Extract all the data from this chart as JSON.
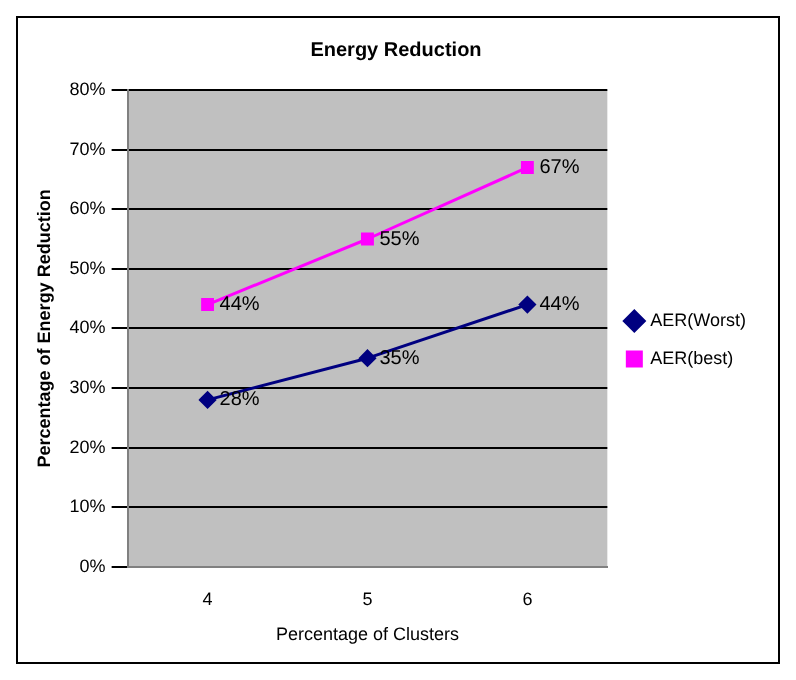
{
  "chart_data": {
    "type": "line",
    "title": "Energy Reduction",
    "xlabel": "Percentage of Clusters",
    "ylabel": "Percentage of Energy Reduction",
    "categories": [
      "4",
      "5",
      "6"
    ],
    "series": [
      {
        "name": "AER(Worst)",
        "color": "#000080",
        "marker": "diamond",
        "values": [
          28,
          35,
          44
        ],
        "value_labels": [
          "28%",
          "35%",
          "44%"
        ]
      },
      {
        "name": "AER(best)",
        "color": "#ff00ff",
        "marker": "square",
        "values": [
          44,
          55,
          67
        ],
        "value_labels": [
          "44%",
          "55%",
          "67%"
        ]
      }
    ],
    "ylim": [
      0,
      80
    ],
    "yticks": [
      {
        "value": 0,
        "label": "0%"
      },
      {
        "value": 10,
        "label": "10%"
      },
      {
        "value": 20,
        "label": "20%"
      },
      {
        "value": 30,
        "label": "30%"
      },
      {
        "value": 40,
        "label": "40%"
      },
      {
        "value": 50,
        "label": "50%"
      },
      {
        "value": 60,
        "label": "60%"
      },
      {
        "value": 70,
        "label": "70%"
      },
      {
        "value": 80,
        "label": "80%"
      }
    ],
    "grid": "y",
    "legend": "right",
    "line_style": "solid"
  }
}
